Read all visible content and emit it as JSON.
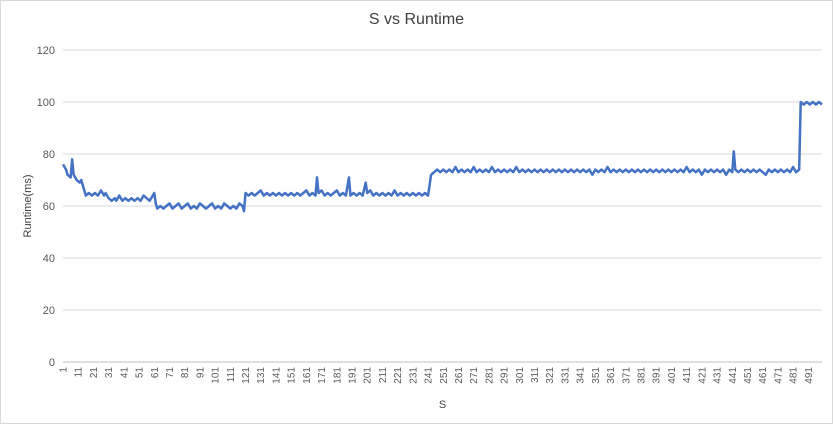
{
  "chart_data": {
    "type": "line",
    "title": "S vs Runtime",
    "xlabel": "S",
    "ylabel": "Runtime(ms)",
    "ylim": [
      0,
      120
    ],
    "yticks": [
      0,
      20,
      40,
      60,
      80,
      100,
      120
    ],
    "xlim": [
      1,
      500
    ],
    "x_tick_labels": [
      "1",
      "11",
      "21",
      "31",
      "41",
      "51",
      "61",
      "71",
      "81",
      "91",
      "101",
      "111",
      "121",
      "131",
      "141",
      "151",
      "161",
      "171",
      "181",
      "191",
      "201",
      "211",
      "221",
      "231",
      "241",
      "251",
      "261",
      "271",
      "281",
      "291",
      "301",
      "311",
      "321",
      "331",
      "341",
      "351",
      "361",
      "371",
      "381",
      "391",
      "401",
      "411",
      "421",
      "431",
      "441",
      "451",
      "461",
      "471",
      "481",
      "491"
    ],
    "grid": "horizontal",
    "line_color": "#4472c4",
    "series": [
      {
        "points": [
          [
            1,
            76
          ],
          [
            3,
            74
          ],
          [
            4,
            72
          ],
          [
            6,
            71
          ],
          [
            7,
            78
          ],
          [
            8,
            72
          ],
          [
            10,
            70
          ],
          [
            12,
            69
          ],
          [
            13,
            70
          ],
          [
            14,
            68
          ],
          [
            15,
            66
          ],
          [
            16,
            64
          ],
          [
            18,
            65
          ],
          [
            20,
            64
          ],
          [
            22,
            65
          ],
          [
            24,
            64
          ],
          [
            26,
            66
          ],
          [
            28,
            64
          ],
          [
            29,
            65
          ],
          [
            31,
            63
          ],
          [
            33,
            62
          ],
          [
            35,
            63
          ],
          [
            36,
            62
          ],
          [
            38,
            64
          ],
          [
            40,
            62
          ],
          [
            42,
            63
          ],
          [
            44,
            62
          ],
          [
            46,
            63
          ],
          [
            48,
            62
          ],
          [
            50,
            63
          ],
          [
            52,
            62
          ],
          [
            54,
            64
          ],
          [
            56,
            63
          ],
          [
            58,
            62
          ],
          [
            60,
            64
          ],
          [
            61,
            65
          ],
          [
            62,
            61
          ],
          [
            63,
            59
          ],
          [
            65,
            60
          ],
          [
            67,
            59
          ],
          [
            69,
            60
          ],
          [
            71,
            61
          ],
          [
            73,
            59
          ],
          [
            75,
            60
          ],
          [
            77,
            61
          ],
          [
            79,
            59
          ],
          [
            81,
            60
          ],
          [
            83,
            61
          ],
          [
            85,
            59
          ],
          [
            87,
            60
          ],
          [
            89,
            59
          ],
          [
            91,
            61
          ],
          [
            93,
            60
          ],
          [
            95,
            59
          ],
          [
            97,
            60
          ],
          [
            99,
            61
          ],
          [
            101,
            59
          ],
          [
            103,
            60
          ],
          [
            105,
            59
          ],
          [
            107,
            61
          ],
          [
            109,
            60
          ],
          [
            111,
            59
          ],
          [
            113,
            60
          ],
          [
            115,
            59
          ],
          [
            117,
            61
          ],
          [
            119,
            60
          ],
          [
            120,
            58
          ],
          [
            121,
            65
          ],
          [
            123,
            64
          ],
          [
            125,
            65
          ],
          [
            127,
            64
          ],
          [
            129,
            65
          ],
          [
            131,
            66
          ],
          [
            133,
            64
          ],
          [
            135,
            65
          ],
          [
            137,
            64
          ],
          [
            139,
            65
          ],
          [
            141,
            64
          ],
          [
            143,
            65
          ],
          [
            145,
            64
          ],
          [
            147,
            65
          ],
          [
            149,
            64
          ],
          [
            151,
            65
          ],
          [
            153,
            64
          ],
          [
            155,
            65
          ],
          [
            157,
            64
          ],
          [
            159,
            65
          ],
          [
            161,
            66
          ],
          [
            163,
            64
          ],
          [
            165,
            65
          ],
          [
            167,
            64
          ],
          [
            168,
            71
          ],
          [
            169,
            65
          ],
          [
            171,
            66
          ],
          [
            173,
            64
          ],
          [
            175,
            65
          ],
          [
            177,
            64
          ],
          [
            179,
            65
          ],
          [
            181,
            66
          ],
          [
            183,
            64
          ],
          [
            185,
            65
          ],
          [
            187,
            64
          ],
          [
            189,
            71
          ],
          [
            190,
            64
          ],
          [
            192,
            65
          ],
          [
            194,
            64
          ],
          [
            196,
            65
          ],
          [
            198,
            64
          ],
          [
            200,
            69
          ],
          [
            201,
            65
          ],
          [
            203,
            66
          ],
          [
            205,
            64
          ],
          [
            207,
            65
          ],
          [
            209,
            64
          ],
          [
            211,
            65
          ],
          [
            213,
            64
          ],
          [
            215,
            65
          ],
          [
            217,
            64
          ],
          [
            219,
            66
          ],
          [
            221,
            64
          ],
          [
            223,
            65
          ],
          [
            225,
            64
          ],
          [
            227,
            65
          ],
          [
            229,
            64
          ],
          [
            231,
            65
          ],
          [
            233,
            64
          ],
          [
            235,
            65
          ],
          [
            237,
            64
          ],
          [
            239,
            65
          ],
          [
            241,
            64
          ],
          [
            243,
            72
          ],
          [
            245,
            73
          ],
          [
            247,
            74
          ],
          [
            249,
            73
          ],
          [
            251,
            74
          ],
          [
            253,
            73
          ],
          [
            255,
            74
          ],
          [
            257,
            73
          ],
          [
            259,
            75
          ],
          [
            261,
            73
          ],
          [
            263,
            74
          ],
          [
            265,
            73
          ],
          [
            267,
            74
          ],
          [
            269,
            73
          ],
          [
            271,
            75
          ],
          [
            273,
            73
          ],
          [
            275,
            74
          ],
          [
            277,
            73
          ],
          [
            279,
            74
          ],
          [
            281,
            73
          ],
          [
            283,
            75
          ],
          [
            285,
            73
          ],
          [
            287,
            74
          ],
          [
            289,
            73
          ],
          [
            291,
            74
          ],
          [
            293,
            73
          ],
          [
            295,
            74
          ],
          [
            297,
            73
          ],
          [
            299,
            75
          ],
          [
            301,
            73
          ],
          [
            303,
            74
          ],
          [
            305,
            73
          ],
          [
            307,
            74
          ],
          [
            309,
            73
          ],
          [
            311,
            74
          ],
          [
            313,
            73
          ],
          [
            315,
            74
          ],
          [
            317,
            73
          ],
          [
            319,
            74
          ],
          [
            321,
            73
          ],
          [
            323,
            74
          ],
          [
            325,
            73
          ],
          [
            327,
            74
          ],
          [
            329,
            73
          ],
          [
            331,
            74
          ],
          [
            333,
            73
          ],
          [
            335,
            74
          ],
          [
            337,
            73
          ],
          [
            339,
            74
          ],
          [
            341,
            73
          ],
          [
            343,
            74
          ],
          [
            345,
            73
          ],
          [
            347,
            74
          ],
          [
            349,
            72
          ],
          [
            351,
            74
          ],
          [
            353,
            73
          ],
          [
            355,
            74
          ],
          [
            357,
            73
          ],
          [
            359,
            75
          ],
          [
            361,
            73
          ],
          [
            363,
            74
          ],
          [
            365,
            73
          ],
          [
            367,
            74
          ],
          [
            369,
            73
          ],
          [
            371,
            74
          ],
          [
            373,
            73
          ],
          [
            375,
            74
          ],
          [
            377,
            73
          ],
          [
            379,
            74
          ],
          [
            381,
            73
          ],
          [
            383,
            74
          ],
          [
            385,
            73
          ],
          [
            387,
            74
          ],
          [
            389,
            73
          ],
          [
            391,
            74
          ],
          [
            393,
            73
          ],
          [
            395,
            74
          ],
          [
            397,
            73
          ],
          [
            399,
            74
          ],
          [
            401,
            73
          ],
          [
            403,
            74
          ],
          [
            405,
            73
          ],
          [
            407,
            74
          ],
          [
            409,
            73
          ],
          [
            411,
            75
          ],
          [
            413,
            73
          ],
          [
            415,
            74
          ],
          [
            417,
            73
          ],
          [
            419,
            74
          ],
          [
            421,
            72
          ],
          [
            423,
            74
          ],
          [
            425,
            73
          ],
          [
            427,
            74
          ],
          [
            429,
            73
          ],
          [
            431,
            74
          ],
          [
            433,
            73
          ],
          [
            435,
            74
          ],
          [
            437,
            72
          ],
          [
            439,
            74
          ],
          [
            441,
            73
          ],
          [
            442,
            81
          ],
          [
            443,
            74
          ],
          [
            445,
            73
          ],
          [
            447,
            74
          ],
          [
            449,
            73
          ],
          [
            451,
            74
          ],
          [
            453,
            73
          ],
          [
            455,
            74
          ],
          [
            457,
            73
          ],
          [
            459,
            74
          ],
          [
            461,
            73
          ],
          [
            463,
            72
          ],
          [
            465,
            74
          ],
          [
            467,
            73
          ],
          [
            469,
            74
          ],
          [
            471,
            73
          ],
          [
            473,
            74
          ],
          [
            475,
            73
          ],
          [
            477,
            74
          ],
          [
            479,
            73
          ],
          [
            481,
            75
          ],
          [
            483,
            73
          ],
          [
            485,
            74
          ],
          [
            486,
            100
          ],
          [
            488,
            99
          ],
          [
            490,
            100
          ],
          [
            492,
            99
          ],
          [
            494,
            100
          ],
          [
            496,
            99
          ],
          [
            498,
            100
          ],
          [
            500,
            99
          ]
        ]
      }
    ]
  }
}
